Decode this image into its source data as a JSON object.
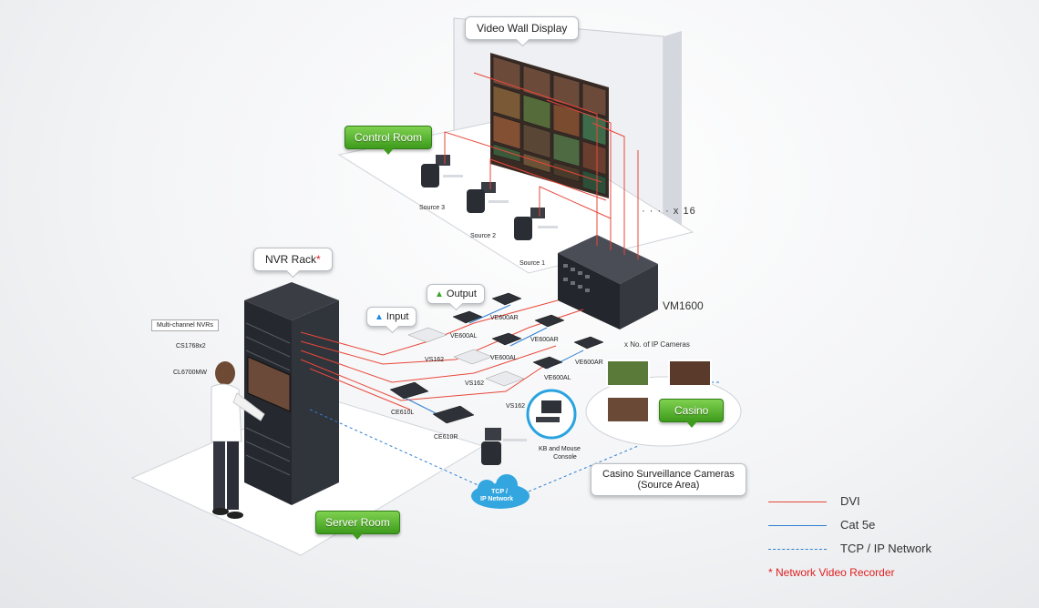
{
  "callouts": {
    "video_wall": "Video Wall Display",
    "nvr_rack": "NVR Rack",
    "nvr_star": "*",
    "input": "Input",
    "output": "Output",
    "casino_cameras_line1": "Casino Surveillance Cameras",
    "casino_cameras_line2": "(Source Area)"
  },
  "badges": {
    "control_room": "Control Room",
    "server_room": "Server Room",
    "casino": "Casino"
  },
  "labels": {
    "multichannel_nvrs": "Multi-channel NVRs",
    "cs1768": "CS1768x2",
    "cl6700mw": "CL6700MW",
    "source1": "Source 1",
    "source2": "Source 2",
    "source3": "Source 3",
    "x16": "x 16",
    "vm1600": "VM1600",
    "ve600ar_1": "VE600AR",
    "ve600ar_2": "VE600AR",
    "ve600ar_3": "VE600AR",
    "ve600al_1": "VE600AL",
    "ve600al_2": "VE600AL",
    "ve600al_3": "VE600AL",
    "vs162_1": "VS162",
    "vs162_2": "VS162",
    "vs162_3": "VS162",
    "ce610l": "CE610L",
    "ce610r": "CE610R",
    "kb_mouse_1": "KB and Mouse",
    "kb_mouse_2": "Console",
    "ip_cameras": "x No. of IP Cameras",
    "tcp_cloud_1": "TCP /",
    "tcp_cloud_2": "IP Network"
  },
  "legend": {
    "dvi": "DVI",
    "cat5e": "Cat 5e",
    "tcpip": "TCP / IP Network",
    "nvr_note": "* Network Video Recorder"
  },
  "colors": {
    "dvi": "#e8473a",
    "cat5e": "#2f7fd1",
    "tcpip": "#2f7fd1",
    "note": "#e02020",
    "badge_green": "#4caf2a"
  }
}
